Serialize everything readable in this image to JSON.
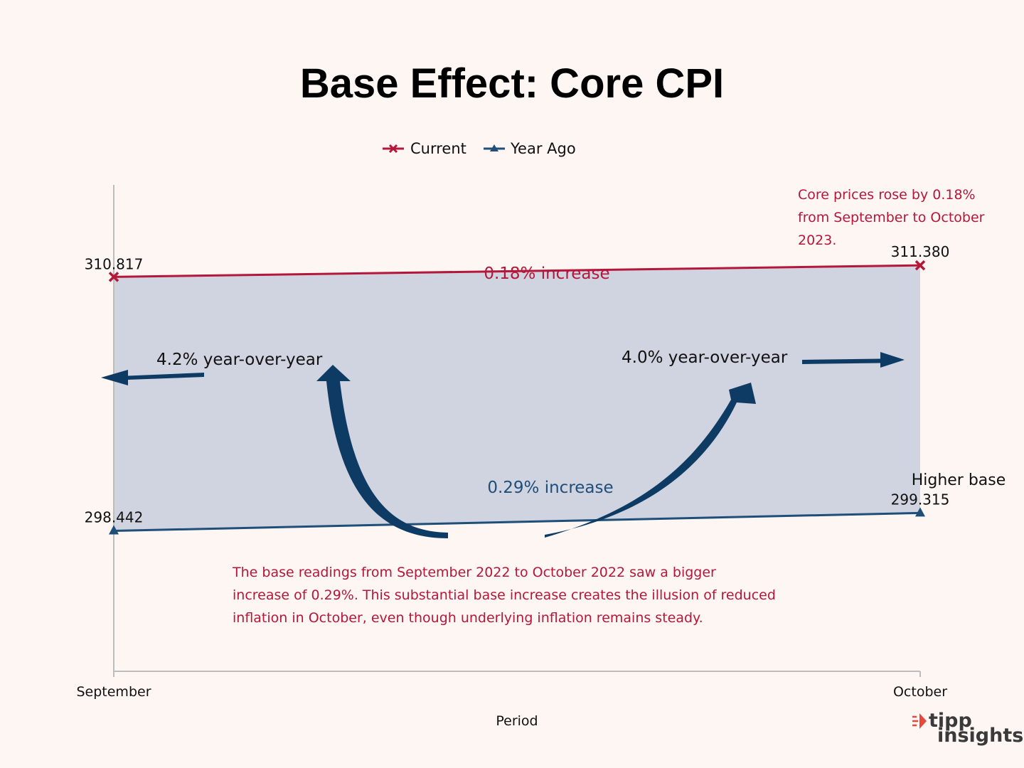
{
  "chart_data": {
    "type": "line",
    "title": "Base Effect: Core CPI",
    "categories": [
      "September",
      "October"
    ],
    "series": [
      {
        "name": "Current",
        "values": [
          310.817,
          311.38
        ],
        "labels": [
          "310.817",
          "311.380"
        ],
        "color": "#b5173a",
        "marker": "x"
      },
      {
        "name": "Year Ago",
        "values": [
          298.442,
          299.315
        ],
        "labels": [
          "298.442",
          "299.315"
        ],
        "color": "#1f4e79",
        "marker": "triangle"
      }
    ],
    "xlabel": "Period",
    "ylabel": "",
    "ylim": [
      291.6,
      315.3
    ],
    "fill_between": {
      "color": "#d0d3e0"
    },
    "annotations": {
      "current_increase": "0.18% increase",
      "yearago_increase": "0.29% increase",
      "yoy_september": "4.2% year-over-year",
      "yoy_october": "4.0% year-over-year",
      "higher_base": "Higher base",
      "note_top": [
        "Core prices rose by 0.18%",
        "from September to October",
        "2023."
      ],
      "note_bottom": [
        "The base readings from September 2022 to October 2022 saw a bigger",
        "increase of 0.29%. This substantial base increase creates the illusion of reduced",
        "inflation in October, even though underlying inflation remains steady."
      ]
    },
    "arrow_color": "#0d3b63"
  },
  "logo": {
    "line1": "tipp",
    "line2": "insights",
    "accent": "#e8473b"
  }
}
